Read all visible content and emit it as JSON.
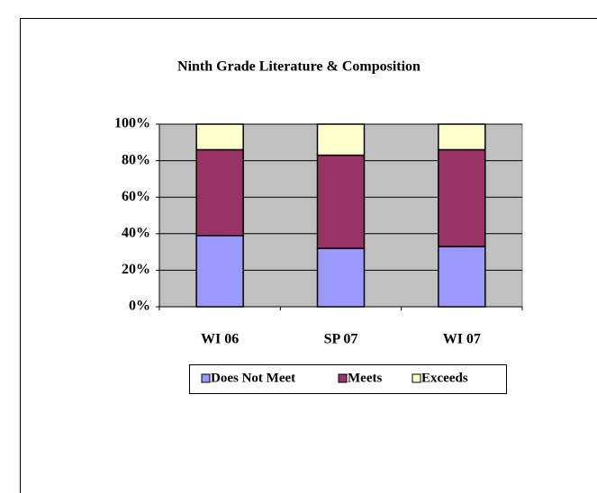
{
  "chart_data": {
    "type": "stacked_bar_100",
    "title": "Ninth Grade Literature & Composition",
    "categories": [
      "WI 06",
      "SP 07",
      "WI 07"
    ],
    "series": [
      {
        "name": "Does Not Meet",
        "color": "#9999ff",
        "values": [
          39,
          32,
          33
        ]
      },
      {
        "name": "Meets",
        "color": "#993366",
        "values": [
          47,
          51,
          53
        ]
      },
      {
        "name": "Exceeds",
        "color": "#ffffcc",
        "values": [
          14,
          17,
          14
        ]
      }
    ],
    "ylim": [
      0,
      100
    ],
    "yticks": [
      {
        "value": 0,
        "label": "0%"
      },
      {
        "value": 20,
        "label": "20%"
      },
      {
        "value": 40,
        "label": "40%"
      },
      {
        "value": 60,
        "label": "60%"
      },
      {
        "value": 80,
        "label": "80%"
      },
      {
        "value": 100,
        "label": "100%"
      }
    ],
    "grid": true,
    "legend": "bottom"
  }
}
